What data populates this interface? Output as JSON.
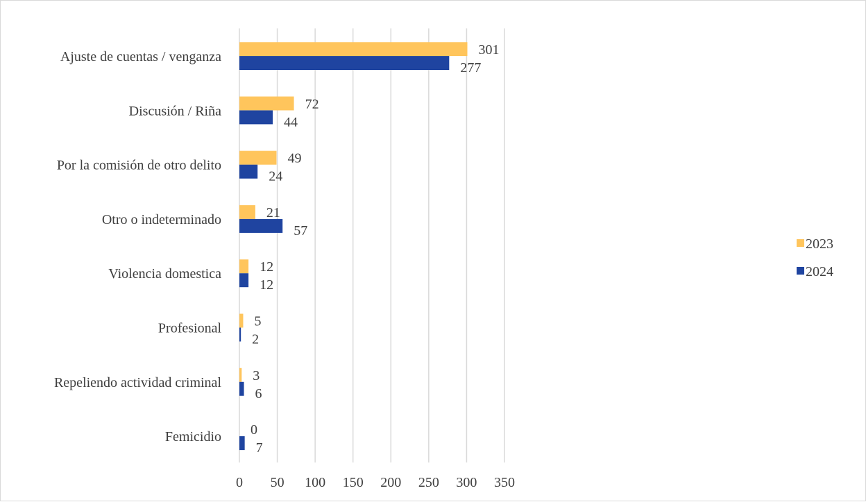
{
  "chart_data": {
    "type": "bar",
    "orientation": "horizontal",
    "categories": [
      "Ajuste de cuentas / venganza",
      "Discusión / Riña",
      "Por la comisión de otro delito",
      "Otro o indeterminado",
      "Violencia domestica",
      "Profesional",
      "Repeliendo actividad criminal",
      "Femicidio"
    ],
    "series": [
      {
        "name": "2023",
        "color": "#FFC55C",
        "values": [
          301,
          72,
          49,
          21,
          12,
          5,
          3,
          0
        ]
      },
      {
        "name": "2024",
        "color": "#1F44A0",
        "values": [
          277,
          44,
          24,
          57,
          12,
          2,
          6,
          7
        ]
      }
    ],
    "xlim": [
      0,
      350
    ],
    "xticks": [
      0,
      50,
      100,
      150,
      200,
      250,
      300,
      350
    ],
    "grid": true,
    "legend_position": "right"
  }
}
